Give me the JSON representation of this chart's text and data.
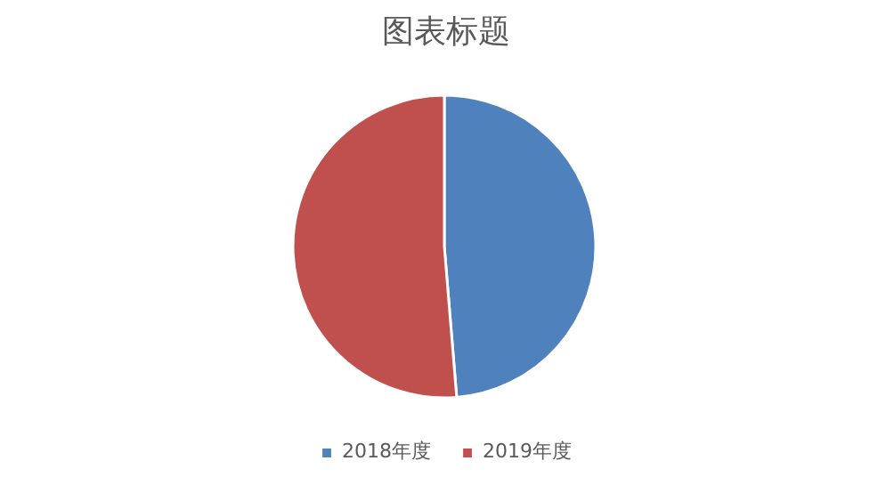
{
  "chart_data": {
    "type": "pie",
    "title": "图表标题",
    "categories": [
      "2018年度",
      "2019年度"
    ],
    "values": [
      48.7,
      51.3
    ],
    "colors": [
      "#4f81bd",
      "#c0504d"
    ],
    "legend": "bottom"
  }
}
